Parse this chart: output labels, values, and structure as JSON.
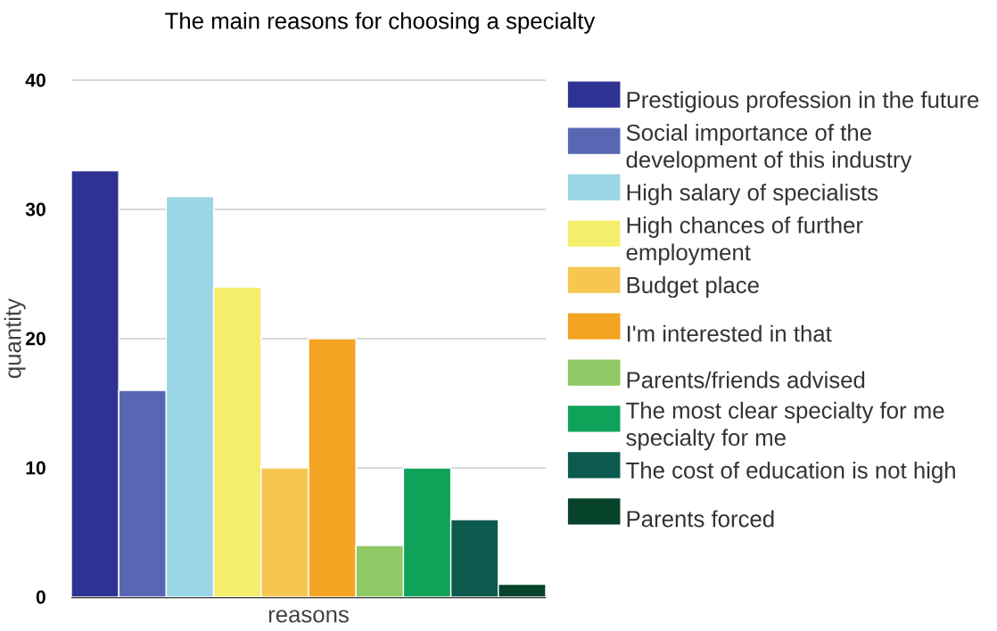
{
  "chart_data": {
    "type": "bar",
    "title": "The main reasons for choosing a specialty",
    "xlabel": "reasons",
    "ylabel": "quantity",
    "categories": [
      null
    ],
    "series": [
      {
        "name": "Prestigious profession in the future",
        "color": "#2e3393",
        "values": [
          33
        ]
      },
      {
        "name": "Social importance of the development of this industry",
        "color": "#5867b4",
        "values": [
          16
        ]
      },
      {
        "name": "High salary of specialists",
        "color": "#9ad6e6",
        "values": [
          31
        ]
      },
      {
        "name": "High chances of further employment",
        "color": "#f5ee6c",
        "values": [
          24
        ]
      },
      {
        "name": "Budget place",
        "color": "#f7c651",
        "values": [
          10
        ]
      },
      {
        "name": "I'm interested in that",
        "color": "#f4a423",
        "values": [
          20
        ]
      },
      {
        "name": "Parents/friends advised",
        "color": "#8ec965",
        "values": [
          4
        ]
      },
      {
        "name": "The most clear specialty for me specialty for me",
        "color": "#0fa35a",
        "values": [
          10
        ]
      },
      {
        "name": "The cost of education is not high",
        "color": "#0b5a4d",
        "values": [
          6
        ]
      },
      {
        "name": "Parents forced",
        "color": "#07432a",
        "values": [
          1
        ]
      }
    ],
    "ylim": [
      0,
      40
    ],
    "yticks": [
      0,
      10,
      20,
      30,
      40
    ],
    "grid": "y",
    "legend": "right"
  }
}
